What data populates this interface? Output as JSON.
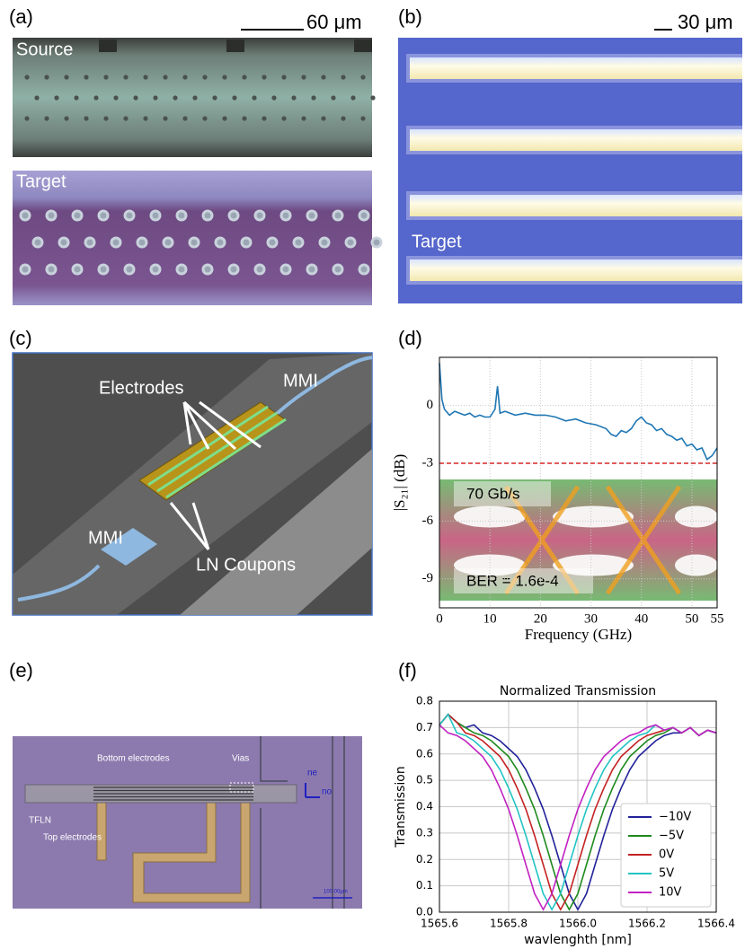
{
  "panel_a": {
    "label": "(a)",
    "scale_bar": "60 μm",
    "top_image_label": "Source",
    "bottom_image_label": "Target"
  },
  "panel_b": {
    "label": "(b)",
    "scale_bar": "30 μm",
    "image_label": "Target"
  },
  "panel_c": {
    "label": "(c)",
    "labels": [
      "Electrodes",
      "MMI",
      "MMI",
      "LN Coupons"
    ]
  },
  "panel_e": {
    "label": "(e)",
    "labels": [
      "Bottom electrodes",
      "Vias",
      "TFLN",
      "Top electrodes",
      "ne",
      "no",
      "100.00µm"
    ]
  },
  "chart_data": [
    {
      "type": "line",
      "panel_label": "(d)",
      "xlabel": "Frequency (GHz)",
      "ylabel": "|S₂₁| (dB)",
      "x": [
        0,
        0.5,
        1,
        2,
        3,
        4,
        5,
        6,
        7,
        8,
        9,
        10,
        11,
        11.5,
        12,
        13,
        14,
        15,
        17,
        19,
        21,
        23,
        25,
        27,
        29,
        31,
        33,
        34,
        35,
        36,
        37,
        38,
        39,
        40,
        41,
        42,
        43,
        44,
        45,
        46,
        47,
        48,
        49,
        50,
        51,
        52,
        53,
        54,
        55
      ],
      "series": [
        {
          "color": "#1f77b4",
          "values": [
            2.2,
            0.3,
            -0.2,
            -0.5,
            -0.3,
            -0.4,
            -0.5,
            -0.4,
            -0.6,
            -0.5,
            -0.6,
            -0.6,
            -0.2,
            1.0,
            -0.4,
            -0.3,
            -0.4,
            -0.5,
            -0.4,
            -0.5,
            -0.5,
            -0.6,
            -0.8,
            -0.7,
            -0.9,
            -1.0,
            -1.2,
            -1.5,
            -1.6,
            -1.3,
            -1.4,
            -1.2,
            -0.8,
            -0.6,
            -0.9,
            -1.0,
            -1.3,
            -1.2,
            -1.5,
            -1.6,
            -1.8,
            -1.7,
            -2.1,
            -2.0,
            -2.3,
            -2.2,
            -2.8,
            -2.6,
            -2.2
          ]
        }
      ],
      "reference_line": {
        "value": -3,
        "color": "#d62728",
        "style": "dashed"
      },
      "annotations": [
        "70 Gb/s",
        "BER = 1.6e-4"
      ],
      "xlim": [
        0,
        55
      ],
      "ylim": [
        -10.5,
        2.5
      ],
      "xticks": [
        0,
        10,
        20,
        30,
        40,
        50,
        55
      ],
      "yticks": [
        0,
        -3,
        -6,
        -9
      ],
      "grid": true
    },
    {
      "type": "line",
      "panel_label": "(f)",
      "title": "Normalized Transmission",
      "xlabel": "wavlenghth [nm]",
      "ylabel": "Transmission",
      "x": [
        1565.6,
        1565.625,
        1565.65,
        1565.675,
        1565.7,
        1565.725,
        1565.75,
        1565.775,
        1565.8,
        1565.825,
        1565.85,
        1565.875,
        1565.9,
        1565.925,
        1565.95,
        1565.975,
        1566,
        1566.025,
        1566.05,
        1566.075,
        1566.1,
        1566.125,
        1566.15,
        1566.175,
        1566.2,
        1566.225,
        1566.25,
        1566.275,
        1566.3,
        1566.325,
        1566.35,
        1566.375,
        1566.4
      ],
      "series": [
        {
          "name": "−10V",
          "color": "#22229a",
          "values": [
            0.71,
            0.75,
            0.72,
            0.7,
            0.71,
            0.68,
            0.67,
            0.65,
            0.62,
            0.59,
            0.54,
            0.47,
            0.39,
            0.29,
            0.18,
            0.07,
            0.01,
            0.07,
            0.18,
            0.29,
            0.39,
            0.47,
            0.54,
            0.59,
            0.62,
            0.65,
            0.67,
            0.68,
            0.68,
            0.7,
            0.67,
            0.69,
            0.68
          ]
        },
        {
          "name": "−5V",
          "color": "#1e8a1e",
          "values": [
            0.71,
            0.75,
            0.72,
            0.7,
            0.68,
            0.67,
            0.65,
            0.62,
            0.59,
            0.54,
            0.47,
            0.39,
            0.29,
            0.18,
            0.07,
            0.01,
            0.07,
            0.18,
            0.29,
            0.39,
            0.47,
            0.54,
            0.59,
            0.62,
            0.65,
            0.67,
            0.68,
            0.7,
            0.68,
            0.7,
            0.67,
            0.69,
            0.68
          ]
        },
        {
          "name": "0V",
          "color": "#c42222",
          "values": [
            0.71,
            0.75,
            0.72,
            0.68,
            0.67,
            0.65,
            0.62,
            0.59,
            0.54,
            0.47,
            0.39,
            0.29,
            0.18,
            0.07,
            0.01,
            0.07,
            0.18,
            0.29,
            0.39,
            0.47,
            0.54,
            0.59,
            0.62,
            0.65,
            0.67,
            0.68,
            0.69,
            0.7,
            0.68,
            0.7,
            0.67,
            0.69,
            0.68
          ]
        },
        {
          "name": "5V",
          "color": "#22c4c4",
          "values": [
            0.71,
            0.75,
            0.68,
            0.67,
            0.65,
            0.62,
            0.59,
            0.54,
            0.47,
            0.39,
            0.29,
            0.18,
            0.07,
            0.01,
            0.07,
            0.18,
            0.29,
            0.39,
            0.47,
            0.54,
            0.59,
            0.62,
            0.65,
            0.67,
            0.68,
            0.71,
            0.69,
            0.7,
            0.68,
            0.7,
            0.67,
            0.69,
            0.68
          ]
        },
        {
          "name": "10V",
          "color": "#c222c2",
          "values": [
            0.71,
            0.68,
            0.67,
            0.65,
            0.62,
            0.59,
            0.54,
            0.47,
            0.39,
            0.29,
            0.18,
            0.07,
            0.01,
            0.07,
            0.18,
            0.29,
            0.39,
            0.47,
            0.54,
            0.59,
            0.62,
            0.65,
            0.67,
            0.68,
            0.7,
            0.71,
            0.69,
            0.7,
            0.68,
            0.7,
            0.67,
            0.69,
            0.68
          ]
        }
      ],
      "xlim": [
        1565.6,
        1566.4
      ],
      "ylim": [
        0,
        0.8
      ],
      "xticks": [
        1565.6,
        1565.8,
        {
          "value": 1566,
          "label": "1566.0"
        },
        1566.2,
        1566.4
      ],
      "yticks": [
        {
          "value": 0,
          "label": "0.0"
        },
        0.1,
        0.2,
        0.3,
        0.4,
        0.5,
        0.6,
        0.7,
        0.8
      ],
      "grid": true,
      "legend": "lower right"
    }
  ]
}
